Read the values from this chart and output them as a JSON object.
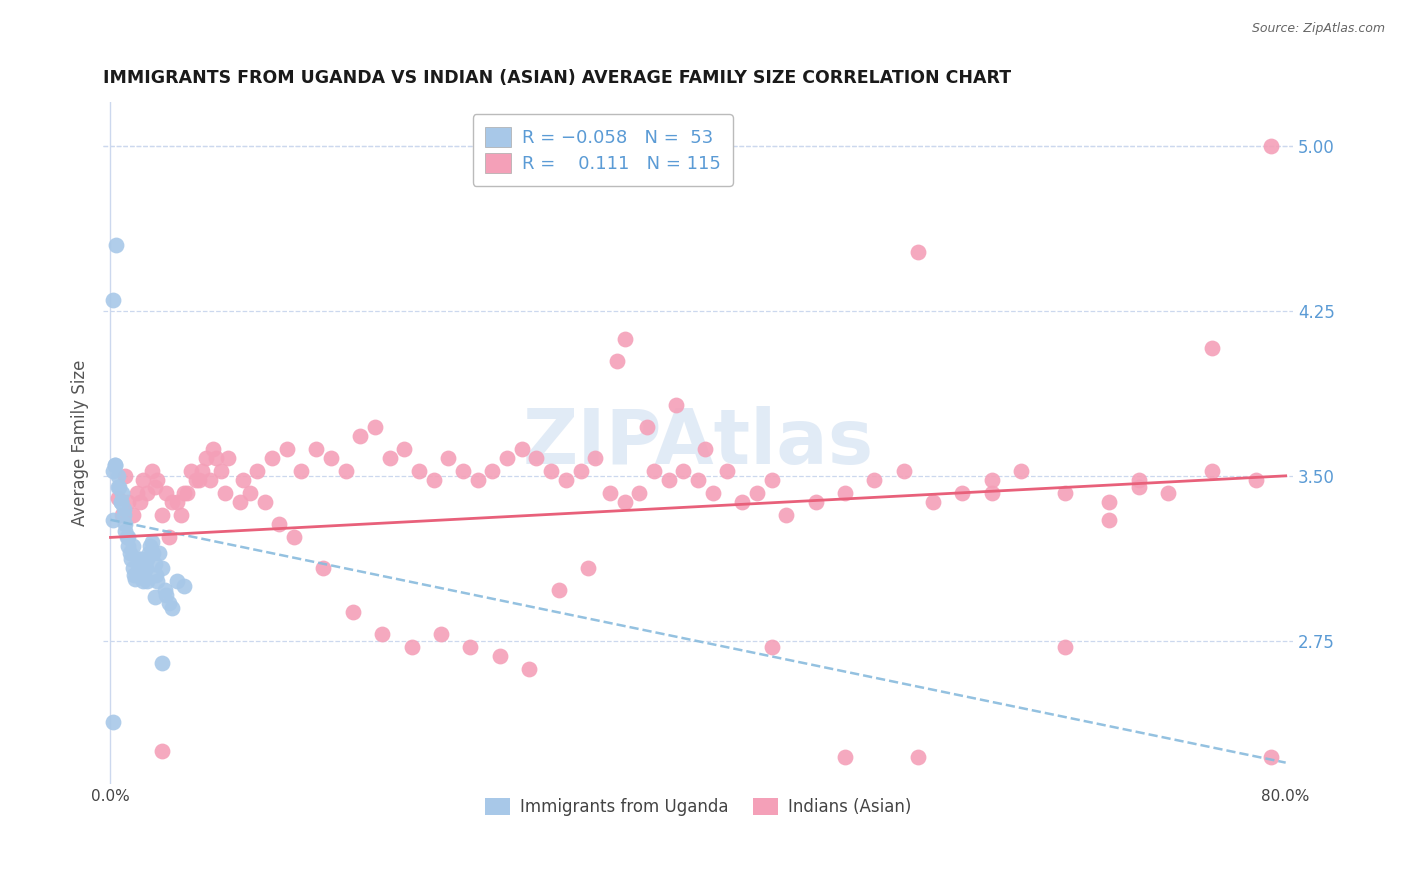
{
  "title": "IMMIGRANTS FROM UGANDA VS INDIAN (ASIAN) AVERAGE FAMILY SIZE CORRELATION CHART",
  "source": "Source: ZipAtlas.com",
  "ylabel": "Average Family Size",
  "watermark": "ZIPAtlas",
  "xlim": [
    -0.005,
    0.805
  ],
  "ylim": [
    2.1,
    5.2
  ],
  "yticks_right": [
    2.75,
    3.5,
    4.25,
    5.0
  ],
  "xticks": [
    0.0,
    0.1,
    0.2,
    0.3,
    0.4,
    0.5,
    0.6,
    0.7,
    0.8
  ],
  "color_uganda": "#a8c8e8",
  "color_indians": "#f4a0b8",
  "color_line_uganda": "#88bbdd",
  "color_line_indians": "#e8607a",
  "color_axis_labels": "#5b9bd5",
  "background_color": "#ffffff",
  "grid_color": "#ccd8ee",
  "uganda_x": [
    0.002,
    0.004,
    0.002,
    0.003,
    0.005,
    0.006,
    0.007,
    0.008,
    0.009,
    0.01,
    0.011,
    0.012,
    0.013,
    0.014,
    0.015,
    0.016,
    0.017,
    0.018,
    0.019,
    0.02,
    0.021,
    0.022,
    0.023,
    0.024,
    0.025,
    0.026,
    0.027,
    0.028,
    0.029,
    0.03,
    0.031,
    0.032,
    0.033,
    0.035,
    0.037,
    0.038,
    0.04,
    0.042,
    0.045,
    0.05,
    0.002,
    0.003,
    0.005,
    0.007,
    0.009,
    0.012,
    0.015,
    0.02,
    0.025,
    0.03,
    0.01,
    0.002,
    0.035
  ],
  "uganda_y": [
    3.3,
    4.55,
    4.3,
    3.55,
    3.5,
    3.45,
    3.38,
    3.42,
    3.35,
    3.28,
    3.22,
    3.18,
    3.15,
    3.12,
    3.08,
    3.05,
    3.03,
    3.06,
    3.1,
    3.12,
    3.08,
    3.02,
    3.05,
    3.08,
    3.12,
    3.15,
    3.18,
    3.2,
    3.15,
    3.1,
    3.05,
    3.02,
    3.15,
    3.08,
    2.98,
    2.96,
    2.92,
    2.9,
    3.02,
    3.0,
    3.52,
    3.55,
    3.45,
    3.38,
    3.32,
    3.22,
    3.18,
    3.12,
    3.02,
    2.95,
    3.25,
    2.38,
    2.65
  ],
  "indians_x": [
    0.005,
    0.01,
    0.015,
    0.02,
    0.025,
    0.03,
    0.035,
    0.04,
    0.045,
    0.05,
    0.055,
    0.06,
    0.065,
    0.07,
    0.075,
    0.08,
    0.09,
    0.1,
    0.11,
    0.12,
    0.13,
    0.14,
    0.15,
    0.16,
    0.17,
    0.18,
    0.19,
    0.2,
    0.21,
    0.22,
    0.23,
    0.24,
    0.25,
    0.26,
    0.27,
    0.28,
    0.29,
    0.3,
    0.31,
    0.32,
    0.33,
    0.34,
    0.35,
    0.36,
    0.37,
    0.38,
    0.39,
    0.4,
    0.41,
    0.42,
    0.43,
    0.44,
    0.45,
    0.46,
    0.48,
    0.5,
    0.52,
    0.54,
    0.56,
    0.58,
    0.6,
    0.62,
    0.65,
    0.68,
    0.7,
    0.72,
    0.75,
    0.78,
    0.008,
    0.012,
    0.018,
    0.022,
    0.028,
    0.032,
    0.038,
    0.042,
    0.048,
    0.052,
    0.058,
    0.062,
    0.068,
    0.072,
    0.078,
    0.088,
    0.095,
    0.105,
    0.115,
    0.125,
    0.145,
    0.165,
    0.185,
    0.205,
    0.225,
    0.245,
    0.265,
    0.285,
    0.305,
    0.325,
    0.345,
    0.365,
    0.385,
    0.405,
    0.79,
    0.035,
    0.45,
    0.5,
    0.55,
    0.35,
    0.6,
    0.65,
    0.55,
    0.75,
    0.7,
    0.68,
    0.79
  ],
  "indians_y": [
    3.4,
    3.5,
    3.32,
    3.38,
    3.42,
    3.45,
    3.32,
    3.22,
    3.38,
    3.42,
    3.52,
    3.48,
    3.58,
    3.62,
    3.52,
    3.58,
    3.48,
    3.52,
    3.58,
    3.62,
    3.52,
    3.62,
    3.58,
    3.52,
    3.68,
    3.72,
    3.58,
    3.62,
    3.52,
    3.48,
    3.58,
    3.52,
    3.48,
    3.52,
    3.58,
    3.62,
    3.58,
    3.52,
    3.48,
    3.52,
    3.58,
    3.42,
    3.38,
    3.42,
    3.52,
    3.48,
    3.52,
    3.48,
    3.42,
    3.52,
    3.38,
    3.42,
    3.48,
    3.32,
    3.38,
    3.42,
    3.48,
    3.52,
    3.38,
    3.42,
    3.48,
    3.52,
    3.42,
    3.38,
    3.48,
    3.42,
    3.52,
    3.48,
    3.32,
    3.38,
    3.42,
    3.48,
    3.52,
    3.48,
    3.42,
    3.38,
    3.32,
    3.42,
    3.48,
    3.52,
    3.48,
    3.58,
    3.42,
    3.38,
    3.42,
    3.38,
    3.28,
    3.22,
    3.08,
    2.88,
    2.78,
    2.72,
    2.78,
    2.72,
    2.68,
    2.62,
    2.98,
    3.08,
    4.02,
    3.72,
    3.82,
    3.62,
    5.0,
    2.25,
    2.72,
    2.22,
    4.52,
    4.12,
    3.42,
    2.72,
    2.22,
    4.08,
    3.45,
    3.3,
    2.22
  ]
}
